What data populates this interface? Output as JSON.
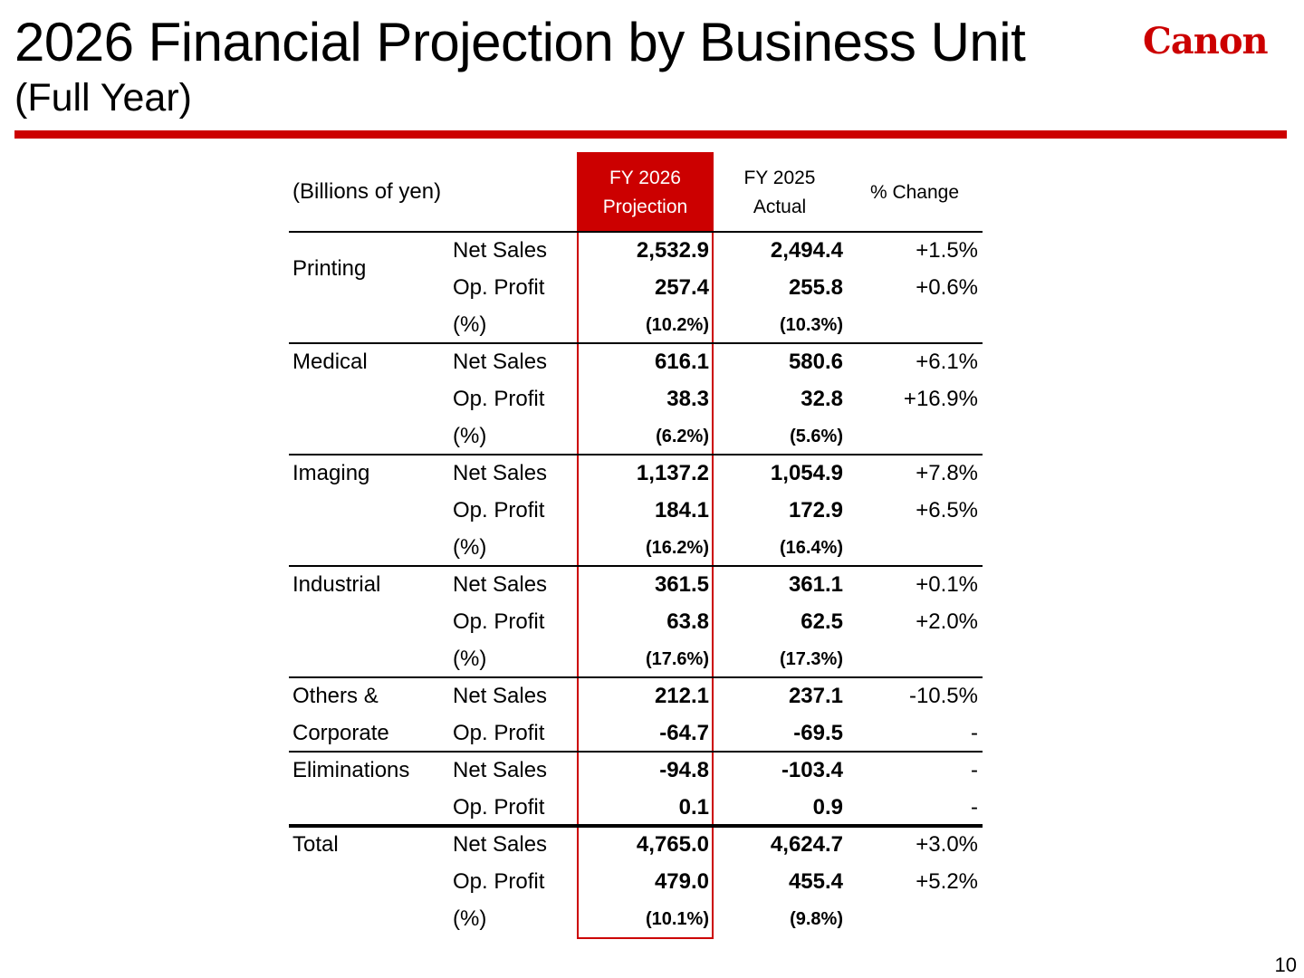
{
  "title": "2026 Financial Projection by Business Unit",
  "subtitle": "(Full Year)",
  "logo_text": "Canon",
  "accent_color": "#cc0000",
  "page_number": "10",
  "table": {
    "unit_label": "(Billions of yen)",
    "columns": {
      "projection": [
        "FY 2026",
        "Projection"
      ],
      "actual": [
        "FY 2025",
        "Actual"
      ],
      "change": "% Change"
    },
    "segments": [
      {
        "name": "Printing",
        "rows": [
          {
            "label": "Net Sales",
            "fy2026": "2,532.9",
            "fy2025": "2,494.4",
            "change": "+1.5%"
          },
          {
            "label": "Op. Profit",
            "fy2026": "257.4",
            "fy2025": "255.8",
            "change": "+0.6%"
          },
          {
            "label": "(%)",
            "fy2026": "(10.2%)",
            "fy2025": "(10.3%)",
            "change": ""
          }
        ]
      },
      {
        "name": "Medical",
        "rows": [
          {
            "label": "Net Sales",
            "fy2026": "616.1",
            "fy2025": "580.6",
            "change": "+6.1%"
          },
          {
            "label": "Op. Profit",
            "fy2026": "38.3",
            "fy2025": "32.8",
            "change": "+16.9%"
          },
          {
            "label": "(%)",
            "fy2026": "(6.2%)",
            "fy2025": "(5.6%)",
            "change": ""
          }
        ]
      },
      {
        "name": "Imaging",
        "rows": [
          {
            "label": "Net Sales",
            "fy2026": "1,137.2",
            "fy2025": "1,054.9",
            "change": "+7.8%"
          },
          {
            "label": "Op. Profit",
            "fy2026": "184.1",
            "fy2025": "172.9",
            "change": "+6.5%"
          },
          {
            "label": "(%)",
            "fy2026": "(16.2%)",
            "fy2025": "(16.4%)",
            "change": ""
          }
        ]
      },
      {
        "name": "Industrial",
        "rows": [
          {
            "label": "Net Sales",
            "fy2026": "361.5",
            "fy2025": "361.1",
            "change": "+0.1%"
          },
          {
            "label": "Op. Profit",
            "fy2026": "63.8",
            "fy2025": "62.5",
            "change": "+2.0%"
          },
          {
            "label": "(%)",
            "fy2026": "(17.6%)",
            "fy2025": "(17.3%)",
            "change": ""
          }
        ]
      },
      {
        "name_lines": [
          "Others &",
          "Corporate"
        ],
        "rows": [
          {
            "label": "Net Sales",
            "fy2026": "212.1",
            "fy2025": "237.1",
            "change": "-10.5%"
          },
          {
            "label": "Op. Profit",
            "fy2026": "-64.7",
            "fy2025": "-69.5",
            "change": "-"
          }
        ]
      },
      {
        "name": "Eliminations",
        "rows": [
          {
            "label": "Net Sales",
            "fy2026": "-94.8",
            "fy2025": "-103.4",
            "change": "-"
          },
          {
            "label": "Op. Profit",
            "fy2026": "0.1",
            "fy2025": "0.9",
            "change": "-"
          }
        ]
      },
      {
        "name": "Total",
        "rows": [
          {
            "label": "Net Sales",
            "fy2026": "4,765.0",
            "fy2025": "4,624.7",
            "change": "+3.0%"
          },
          {
            "label": "Op. Profit",
            "fy2026": "479.0",
            "fy2025": "455.4",
            "change": "+5.2%"
          },
          {
            "label": "(%)",
            "fy2026": "(10.1%)",
            "fy2025": "(9.8%)",
            "change": ""
          }
        ]
      }
    ]
  }
}
